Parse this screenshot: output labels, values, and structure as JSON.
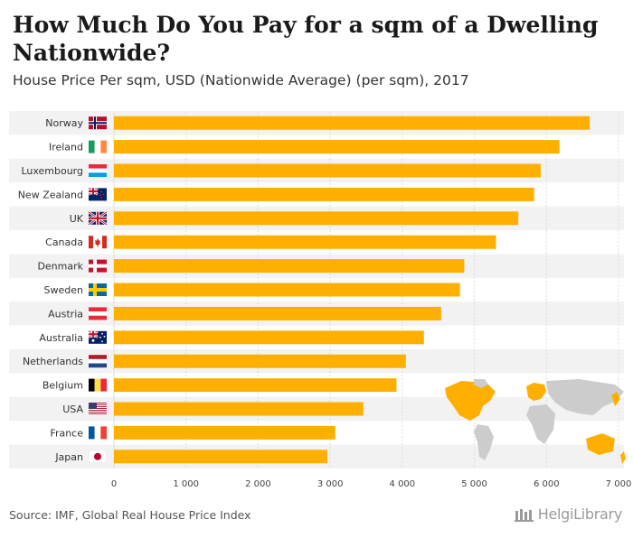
{
  "title": "How Much Do You Pay for a sqm of a Dwelling Nationwide?",
  "subtitle": "House Price Per sqm, USD (Nationwide Average) (per sqm), 2017",
  "source": "Source: IMF, Global Real House Price Index",
  "logo": {
    "text": "HelgiLibrary"
  },
  "colors": {
    "bar": "#FFAF00",
    "band": "#F2F2F2",
    "map_land": "#CCCCCC",
    "map_highlight": "#FFAF00"
  },
  "chart_data": {
    "type": "bar",
    "orientation": "horizontal",
    "categories": [
      "Norway",
      "Ireland",
      "Luxembourg",
      "New Zealand",
      "UK",
      "Canada",
      "Denmark",
      "Sweden",
      "Austria",
      "Australia",
      "Netherlands",
      "Belgium",
      "USA",
      "France",
      "Japan"
    ],
    "values": [
      6600,
      6180,
      5920,
      5830,
      5610,
      5300,
      4860,
      4800,
      4540,
      4300,
      4050,
      3920,
      3460,
      3070,
      2960
    ],
    "xlim": [
      0,
      7000
    ],
    "xticks": [
      0,
      1000,
      2000,
      3000,
      4000,
      5000,
      6000,
      7000
    ],
    "xtick_labels": [
      "0",
      "1 000",
      "2 000",
      "3 000",
      "4 000",
      "5 000",
      "6 000",
      "7 000"
    ],
    "flags": [
      "norway-flag",
      "ireland-flag",
      "luxembourg-flag",
      "new-zealand-flag",
      "uk-flag",
      "canada-flag",
      "denmark-flag",
      "sweden-flag",
      "austria-flag",
      "australia-flag",
      "netherlands-flag",
      "belgium-flag",
      "usa-flag",
      "france-flag",
      "japan-flag"
    ],
    "grid": true,
    "legend": "none"
  }
}
